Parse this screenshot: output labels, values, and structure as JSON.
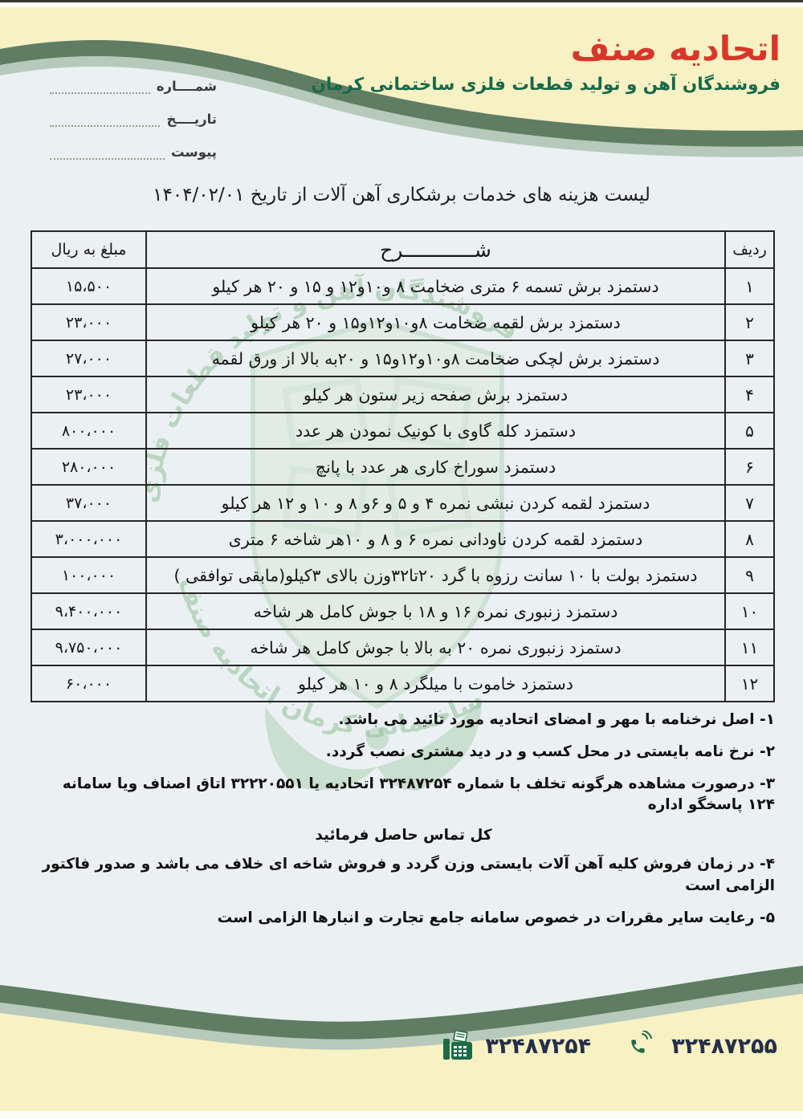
{
  "header": {
    "org_title": "اتحادیه صنف",
    "org_subtitle": "فروشندگان آهن و تولید قطعات فلزی ساختمانی کرمان"
  },
  "meta_fields": {
    "number_label": "شمــــاره",
    "date_label": "تاریــــخ",
    "attachment_label": "پیوست"
  },
  "doc_title": "لیست هزینه های خدمات برشکاری آهن آلات از تاریخ ۱۴۰۴/۰۲/۰۱",
  "table": {
    "col_row": "ردیف",
    "col_desc": "شــــــــــــرح",
    "col_amount": "مبلغ به ریال",
    "rows": [
      {
        "num": "۱",
        "desc": "دستمزد برش تسمه ۶ متری ضخامت ۸ و۱۰و۱۲ و ۱۵ و ۲۰ هر کیلو",
        "amount": "۱۵،۵۰۰"
      },
      {
        "num": "۲",
        "desc": "دستمزد برش لقمه ضخامت ۸و۱۰و۱۲و۱۵ و ۲۰ هر کیلو",
        "amount": "۲۳،۰۰۰"
      },
      {
        "num": "۳",
        "desc": "دستمزد برش لچکی ضخامت ۸و۱۰و۱۲و۱۵ و ۲۰به بالا از ورق لقمه",
        "amount": "۲۷،۰۰۰"
      },
      {
        "num": "۴",
        "desc": "دستمزد برش صفحه زیر ستون هر کیلو",
        "amount": "۲۳،۰۰۰"
      },
      {
        "num": "۵",
        "desc": "دستمزد کله گاوی با کونیک نمودن هر عدد",
        "amount": "۸۰۰،۰۰۰"
      },
      {
        "num": "۶",
        "desc": "دستمزد سوراخ کاری هر عدد با پانچ",
        "amount": "۲۸۰،۰۰۰"
      },
      {
        "num": "۷",
        "desc": "دستمزد لقمه کردن نبشی نمره ۴ و ۵ و ۶و ۸ و ۱۰ و ۱۲ هر کیلو",
        "amount": "۳۷،۰۰۰"
      },
      {
        "num": "۸",
        "desc": "دستمزد لقمه کردن ناودانی نمره ۶ و ۸ و ۱۰هر شاخه ۶ متری",
        "amount": "۳،۰۰۰،۰۰۰"
      },
      {
        "num": "۹",
        "desc": "دستمزد بولت با ۱۰ سانت رزوه با گرد ۲۰تا۳۲وزن بالای ۳کیلو(مابقی توافقی )",
        "amount": "۱۰۰،۰۰۰"
      },
      {
        "num": "۱۰",
        "desc": "دستمزد زنبوری نمره ۱۶ و ۱۸ با جوش کامل هر شاخه",
        "amount": "۹،۴۰۰،۰۰۰"
      },
      {
        "num": "۱۱",
        "desc": "دستمزد زنبوری نمره ۲۰ به بالا با جوش کامل هر شاخه",
        "amount": "۹،۷۵۰،۰۰۰"
      },
      {
        "num": "۱۲",
        "desc": "دستمزد خاموت با میلگرد ۸ و ۱۰ هر کیلو",
        "amount": "۶۰،۰۰۰"
      }
    ]
  },
  "notes": [
    {
      "text": "۱- اصل نرخنامه با مهر و امضای اتحادیه مورد تائید می باشد."
    },
    {
      "text": "۲- نرخ نامه بایستی در محل کسب و در دید مشتری نصب گردد."
    },
    {
      "text": "۳- درصورت مشاهده هرگونه تخلف با شماره ۳۲۴۸۷۲۵۴ اتحادیه یا ۳۲۲۲۰۵۵۱ اتاق اصناف ویا سامانه ۱۲۴ پاسخگو اداره",
      "text2": "کل تماس حاصل فرمائید"
    },
    {
      "text": "۴- در زمان فروش کلیه آهن آلات بایستی وزن گردد و فروش شاخه ای خلاف می باشد و صدور فاکتور الزامی است"
    },
    {
      "text": "۵- رعایت سایر مقررات در خصوص سامانه جامع تجارت و انبارها الزامی است"
    }
  ],
  "footer": {
    "fax_number": "۳۲۴۸۷۲۵۴",
    "phone_number": "۳۲۴۸۷۲۵۵"
  },
  "watermark": {
    "seal_text": "اتحادیه صنف فروشندگان آهن و تولید قطعات فلزی ساختمانی کرمان"
  },
  "colors": {
    "title_red": "#d9352a",
    "brand_green": "#17684a",
    "wave_dark": "#5e7d62",
    "wave_light": "#b7c9bb",
    "paper_cream": "#f8f1c3",
    "page_blue": "#ebf1f2",
    "icon_green": "#1c6b47",
    "number_navy": "#252f4a"
  }
}
